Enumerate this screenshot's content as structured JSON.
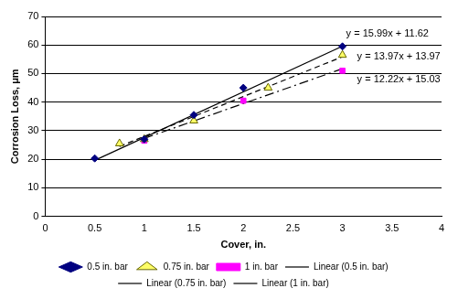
{
  "chart_data": {
    "type": "scatter",
    "x_label": "Cover, in.",
    "y_label": "Corrosion Loss, μm",
    "xlim": [
      0,
      4
    ],
    "xticks": [
      0,
      0.5,
      1,
      1.5,
      2,
      2.5,
      3,
      3.5,
      4
    ],
    "ylim": [
      0,
      70
    ],
    "yticks": [
      0,
      10,
      20,
      30,
      40,
      50,
      60,
      70
    ],
    "grid": true,
    "legend": "bottom",
    "series": [
      {
        "name": "0.5 in. bar",
        "type": "scatter",
        "marker": "diamond",
        "color": "#000080",
        "x": [
          0.5,
          1,
          1.5,
          2,
          3
        ],
        "values": [
          20.3,
          27,
          35.5,
          45,
          59.5
        ]
      },
      {
        "name": "0.75 in. bar",
        "type": "scatter",
        "marker": "triangle",
        "color": "#ffff66",
        "x": [
          0.75,
          1,
          1.5,
          2.25,
          3
        ],
        "values": [
          25.5,
          27,
          33.5,
          45,
          56.5
        ]
      },
      {
        "name": "1 in. bar",
        "type": "scatter",
        "marker": "square",
        "color": "#ff00ff",
        "x": [
          1,
          2,
          3
        ],
        "values": [
          26.5,
          40.5,
          51
        ]
      },
      {
        "name": "Linear (0.5 in. bar)",
        "type": "line",
        "line_style": "solid",
        "color": "#000000",
        "x": [
          0.5,
          3
        ],
        "values": [
          19.6,
          59.6
        ]
      },
      {
        "name": "Linear (0.75 in. bar)",
        "type": "line",
        "line_style": "dashed",
        "color": "#000000",
        "x": [
          0.75,
          3
        ],
        "values": [
          24.5,
          55.9
        ]
      },
      {
        "name": "Linear (1 in. bar)",
        "type": "line",
        "line_style": "dashdot",
        "color": "#000000",
        "x": [
          1,
          3
        ],
        "values": [
          27.3,
          51.7
        ]
      }
    ],
    "annotations": [
      "y = 15.99x + 11.62",
      "y = 13.97x + 13.97",
      "y = 12.22x + 15.03"
    ]
  }
}
